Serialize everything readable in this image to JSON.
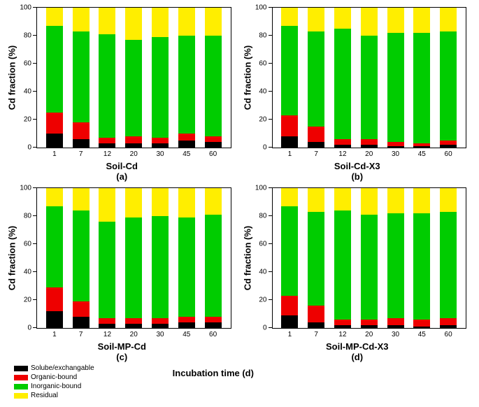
{
  "colors": {
    "solube": "#000000",
    "organic": "#ee0000",
    "inorganic": "#00cc00",
    "residual": "#ffee00",
    "axis": "#000000",
    "background": "#ffffff"
  },
  "ylim": [
    0,
    100
  ],
  "ytick_step": 20,
  "ylabel": "Cd fraction (%)",
  "global_xlabel": "Incubation time (d)",
  "categories": [
    "1",
    "7",
    "12",
    "20",
    "30",
    "45",
    "60"
  ],
  "legend": [
    {
      "key": "solube",
      "label": "Solube/exchangable"
    },
    {
      "key": "organic",
      "label": "Organic-bound"
    },
    {
      "key": "inorganic",
      "label": "Inorganic-bound"
    },
    {
      "key": "residual",
      "label": "Residual"
    }
  ],
  "panels": [
    {
      "id": "a",
      "xlabel": "Soil-Cd",
      "letter": "(a)",
      "series": [
        {
          "solube": 10,
          "organic": 15,
          "inorganic": 62,
          "residual": 13
        },
        {
          "solube": 6,
          "organic": 12,
          "inorganic": 65,
          "residual": 17
        },
        {
          "solube": 3,
          "organic": 4,
          "inorganic": 74,
          "residual": 19
        },
        {
          "solube": 3,
          "organic": 5,
          "inorganic": 69,
          "residual": 23
        },
        {
          "solube": 3,
          "organic": 4,
          "inorganic": 72,
          "residual": 21
        },
        {
          "solube": 5,
          "organic": 5,
          "inorganic": 70,
          "residual": 20
        },
        {
          "solube": 4,
          "organic": 4,
          "inorganic": 72,
          "residual": 20
        }
      ]
    },
    {
      "id": "b",
      "xlabel": "Soil-Cd-X3",
      "letter": "(b)",
      "series": [
        {
          "solube": 8,
          "organic": 15,
          "inorganic": 64,
          "residual": 13
        },
        {
          "solube": 4,
          "organic": 11,
          "inorganic": 68,
          "residual": 17
        },
        {
          "solube": 2,
          "organic": 4,
          "inorganic": 79,
          "residual": 15
        },
        {
          "solube": 2,
          "organic": 4,
          "inorganic": 74,
          "residual": 20
        },
        {
          "solube": 1,
          "organic": 3,
          "inorganic": 78,
          "residual": 18
        },
        {
          "solube": 1,
          "organic": 2,
          "inorganic": 79,
          "residual": 18
        },
        {
          "solube": 2,
          "organic": 3,
          "inorganic": 78,
          "residual": 17
        }
      ]
    },
    {
      "id": "c",
      "xlabel": "Soil-MP-Cd",
      "letter": "(c)",
      "series": [
        {
          "solube": 12,
          "organic": 17,
          "inorganic": 58,
          "residual": 13
        },
        {
          "solube": 8,
          "organic": 11,
          "inorganic": 65,
          "residual": 16
        },
        {
          "solube": 3,
          "organic": 4,
          "inorganic": 69,
          "residual": 24
        },
        {
          "solube": 3,
          "organic": 4,
          "inorganic": 72,
          "residual": 21
        },
        {
          "solube": 3,
          "organic": 4,
          "inorganic": 73,
          "residual": 20
        },
        {
          "solube": 4,
          "organic": 4,
          "inorganic": 71,
          "residual": 21
        },
        {
          "solube": 4,
          "organic": 4,
          "inorganic": 73,
          "residual": 19
        }
      ]
    },
    {
      "id": "d",
      "xlabel": "Soil-MP-Cd-X3",
      "letter": "(d)",
      "series": [
        {
          "solube": 9,
          "organic": 14,
          "inorganic": 64,
          "residual": 13
        },
        {
          "solube": 4,
          "organic": 12,
          "inorganic": 67,
          "residual": 17
        },
        {
          "solube": 2,
          "organic": 4,
          "inorganic": 78,
          "residual": 16
        },
        {
          "solube": 2,
          "organic": 4,
          "inorganic": 75,
          "residual": 19
        },
        {
          "solube": 2,
          "organic": 5,
          "inorganic": 75,
          "residual": 18
        },
        {
          "solube": 1,
          "organic": 5,
          "inorganic": 76,
          "residual": 18
        },
        {
          "solube": 2,
          "organic": 5,
          "inorganic": 76,
          "residual": 17
        }
      ]
    }
  ]
}
